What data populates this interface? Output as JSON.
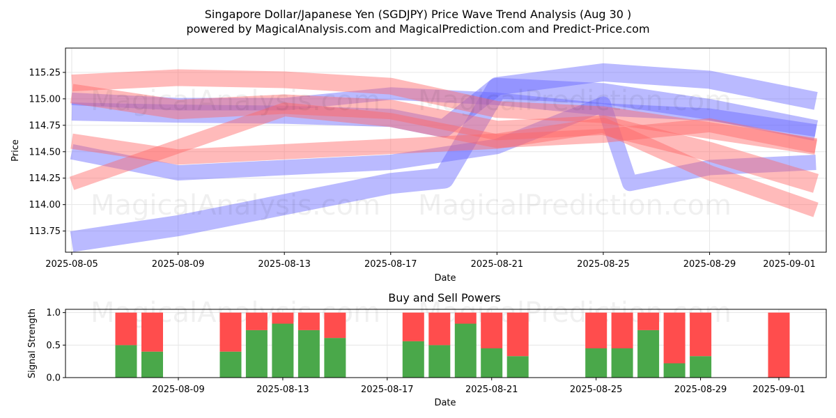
{
  "title_line1": "Singapore Dollar/Japanese Yen (SGDJPY) Price Wave Trend Analysis (Aug 30 )",
  "title_line2": "powered by MagicalAnalysis.com and MagicalPrediction.com and Predict-Price.com",
  "watermarks": [
    "MagicalAnalysis.com",
    "MagicalPrediction.com"
  ],
  "colors": {
    "buy": "#4aa84a",
    "sell": "#ff4d4d",
    "blue_band": "#6666ff",
    "red_band": "#ff6666"
  },
  "chart_data": [
    {
      "type": "area",
      "title": "",
      "xlabel": "Date",
      "ylabel": "Price",
      "x_tick_labels": [
        "2025-08-05",
        "2025-08-09",
        "2025-08-13",
        "2025-08-17",
        "2025-08-21",
        "2025-08-25",
        "2025-08-29",
        "2025-09-01"
      ],
      "y_tick_labels": [
        "113.75",
        "114.00",
        "114.25",
        "114.50",
        "114.75",
        "115.00",
        "115.25"
      ],
      "xlim": [
        "2025-08-05",
        "2025-09-02"
      ],
      "ylim": [
        113.55,
        115.48
      ],
      "grid": true,
      "series": [
        {
          "color": "blue",
          "x": [
            "2025-08-05",
            "2025-08-09",
            "2025-08-13",
            "2025-08-17",
            "2025-08-19",
            "2025-08-21",
            "2025-08-25",
            "2025-08-29",
            "2025-09-02"
          ],
          "values": [
            114.88,
            114.86,
            114.85,
            114.82,
            114.72,
            115.12,
            115.25,
            115.18,
            114.98
          ]
        },
        {
          "color": "blue",
          "x": [
            "2025-08-05",
            "2025-08-09",
            "2025-08-13",
            "2025-08-17",
            "2025-08-19",
            "2025-08-21",
            "2025-08-25",
            "2025-08-29",
            "2025-09-02"
          ],
          "values": [
            113.65,
            113.8,
            114.0,
            114.2,
            114.25,
            115.1,
            115.05,
            114.9,
            114.7
          ]
        },
        {
          "color": "blue",
          "x": [
            "2025-08-05",
            "2025-08-09",
            "2025-08-13",
            "2025-08-17",
            "2025-08-21",
            "2025-08-25",
            "2025-08-26",
            "2025-08-29",
            "2025-09-02"
          ],
          "values": [
            114.5,
            114.3,
            114.35,
            114.4,
            114.55,
            114.95,
            114.2,
            114.35,
            114.4
          ]
        },
        {
          "color": "blue",
          "x": [
            "2025-08-05",
            "2025-08-09",
            "2025-08-13",
            "2025-08-17",
            "2025-08-21",
            "2025-08-25",
            "2025-08-29",
            "2025-09-02"
          ],
          "values": [
            115.0,
            114.95,
            114.95,
            115.05,
            115.0,
            114.9,
            114.85,
            114.7
          ]
        },
        {
          "color": "red",
          "x": [
            "2025-08-05",
            "2025-08-09",
            "2025-08-13",
            "2025-08-17",
            "2025-08-21",
            "2025-08-25",
            "2025-08-29",
            "2025-09-02"
          ],
          "values": [
            115.15,
            115.2,
            115.18,
            115.12,
            114.9,
            114.85,
            114.7,
            114.55
          ]
        },
        {
          "color": "red",
          "x": [
            "2025-08-05",
            "2025-08-09",
            "2025-08-13",
            "2025-08-17",
            "2025-08-21",
            "2025-08-25",
            "2025-08-29",
            "2025-09-02"
          ],
          "values": [
            115.05,
            114.9,
            114.95,
            114.9,
            114.7,
            114.75,
            114.5,
            114.2
          ]
        },
        {
          "color": "red",
          "x": [
            "2025-08-05",
            "2025-08-09",
            "2025-08-13",
            "2025-08-17",
            "2025-08-21",
            "2025-08-25",
            "2025-08-29",
            "2025-09-02"
          ],
          "values": [
            114.6,
            114.45,
            114.5,
            114.55,
            114.6,
            114.75,
            114.3,
            113.95
          ]
        },
        {
          "color": "red",
          "x": [
            "2025-08-05",
            "2025-08-09",
            "2025-08-13",
            "2025-08-17",
            "2025-08-21",
            "2025-08-25",
            "2025-08-29",
            "2025-09-02"
          ],
          "values": [
            114.2,
            114.55,
            114.9,
            114.8,
            114.6,
            114.65,
            114.75,
            114.55
          ]
        }
      ]
    },
    {
      "type": "bar",
      "title": "Buy and Sell Powers",
      "xlabel": "Date",
      "ylabel": "Signal Strength",
      "x_tick_labels": [
        "2025-08-09",
        "2025-08-13",
        "2025-08-17",
        "2025-08-21",
        "2025-08-25",
        "2025-08-29",
        "2025-09-01"
      ],
      "y_tick_labels": [
        "0.0",
        "0.5",
        "1.0"
      ],
      "ylim": [
        0,
        1.05
      ],
      "grid": true,
      "categories": [
        "2025-08-07",
        "2025-08-08",
        "2025-08-11",
        "2025-08-12",
        "2025-08-13",
        "2025-08-14",
        "2025-08-15",
        "2025-08-18",
        "2025-08-19",
        "2025-08-20",
        "2025-08-21",
        "2025-08-22",
        "2025-08-25",
        "2025-08-26",
        "2025-08-27",
        "2025-08-28",
        "2025-08-29",
        "2025-09-01"
      ],
      "series": [
        {
          "name": "Buy",
          "values": [
            0.5,
            0.4,
            0.4,
            0.73,
            0.83,
            0.73,
            0.61,
            0.56,
            0.5,
            0.83,
            0.45,
            0.33,
            0.45,
            0.45,
            0.73,
            0.22,
            0.33,
            0.0
          ]
        },
        {
          "name": "Sell",
          "values": [
            0.5,
            0.6,
            0.6,
            0.27,
            0.17,
            0.27,
            0.39,
            0.44,
            0.5,
            0.17,
            0.55,
            0.67,
            0.55,
            0.55,
            0.27,
            0.78,
            0.67,
            1.0
          ]
        }
      ]
    }
  ]
}
